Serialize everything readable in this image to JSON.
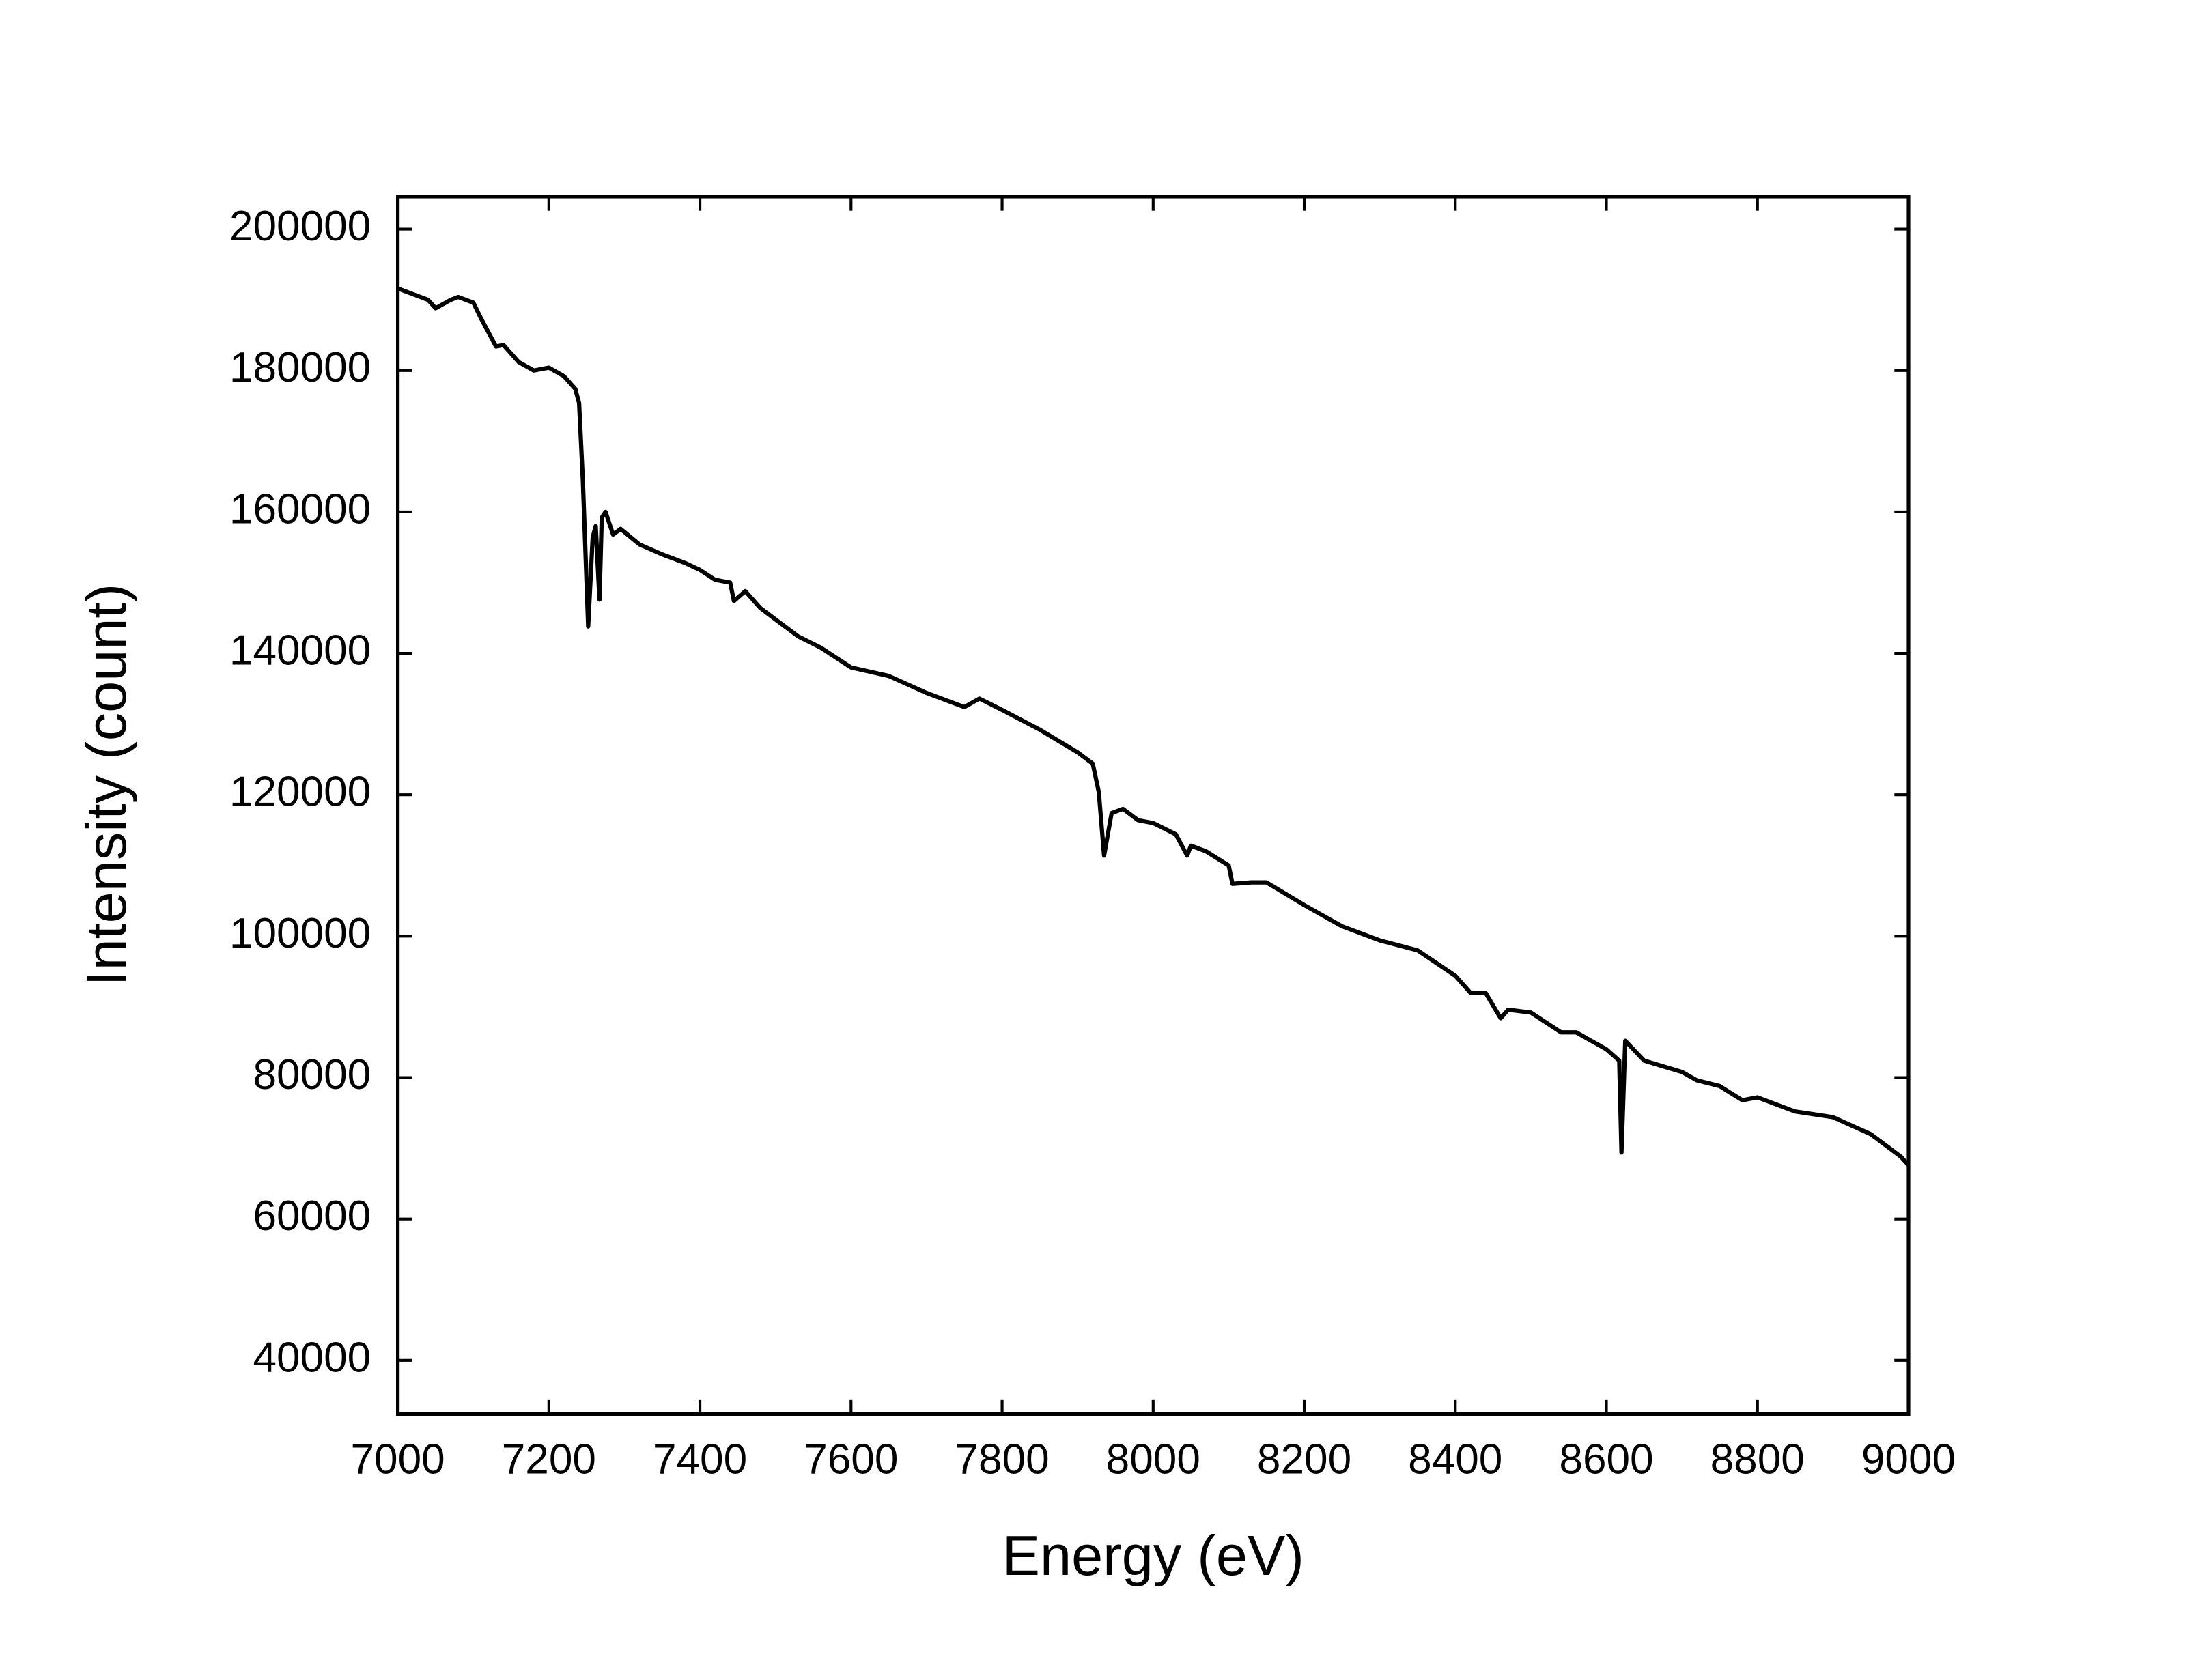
{
  "chart_data": {
    "type": "line",
    "x_label": "Energy (eV)",
    "y_label": "Intensity (count)",
    "xlim": [
      7000,
      9000
    ],
    "ylim": [
      32400,
      204600
    ],
    "xticks": [
      7000,
      7200,
      7400,
      7600,
      7800,
      8000,
      8200,
      8400,
      8600,
      8800,
      9000
    ],
    "yticks": [
      40000,
      60000,
      80000,
      100000,
      120000,
      140000,
      160000,
      180000,
      200000
    ],
    "grid": false,
    "series": [
      {
        "color": "#000000",
        "x": [
          7000,
          7020,
          7040,
          7050,
          7070,
          7080,
          7100,
          7110,
          7130,
          7140,
          7160,
          7180,
          7200,
          7220,
          7235,
          7240,
          7245,
          7252,
          7258,
          7262,
          7267,
          7270,
          7275,
          7285,
          7295,
          7320,
          7350,
          7380,
          7400,
          7420,
          7440,
          7445,
          7460,
          7480,
          7500,
          7530,
          7560,
          7600,
          7650,
          7700,
          7750,
          7770,
          7800,
          7850,
          7900,
          7920,
          7928,
          7935,
          7945,
          7960,
          7980,
          8000,
          8030,
          8045,
          8050,
          8070,
          8100,
          8105,
          8130,
          8150,
          8200,
          8250,
          8300,
          8350,
          8400,
          8420,
          8440,
          8460,
          8470,
          8500,
          8540,
          8560,
          8600,
          8617,
          8620,
          8625,
          8650,
          8700,
          8720,
          8750,
          8780,
          8800,
          8850,
          8900,
          8950,
          8990,
          9000
        ],
        "values": [
          191600,
          190800,
          190000,
          188800,
          190000,
          190400,
          189600,
          187400,
          183400,
          183600,
          181200,
          180000,
          180400,
          179200,
          177400,
          175400,
          164400,
          143800,
          156400,
          158000,
          147600,
          159200,
          160000,
          156800,
          157600,
          155400,
          154000,
          152800,
          151800,
          150400,
          150000,
          147400,
          148800,
          146400,
          144800,
          142400,
          140800,
          138000,
          136800,
          134400,
          132400,
          133600,
          132000,
          129200,
          126000,
          124400,
          120400,
          111400,
          117400,
          118000,
          116400,
          116000,
          114400,
          111400,
          112800,
          112000,
          110000,
          107400,
          107600,
          107600,
          104400,
          101400,
          99400,
          98000,
          94400,
          92000,
          92000,
          88400,
          89600,
          89200,
          86400,
          86400,
          84000,
          82400,
          69400,
          85200,
          82400,
          80800,
          79600,
          78800,
          76800,
          77200,
          75200,
          74400,
          72000,
          68800,
          67600
        ]
      }
    ]
  }
}
